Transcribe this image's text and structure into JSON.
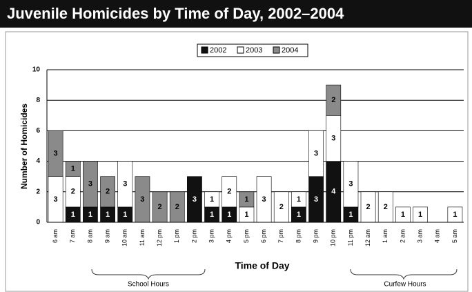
{
  "chart_data": {
    "type": "stacked_bar",
    "title": "Juvenile Homicides by Time of Day, 2002–2004",
    "x_label": "Time of Day",
    "y_label": "Number of Homicides",
    "annotations": [
      "School Hours",
      "Curfew Hours"
    ],
    "categories": [
      "6 am",
      "7 am",
      "8 am",
      "9 am",
      "10 am",
      "11 am",
      "12 pm",
      "1 pm",
      "2 pm",
      "3 pm",
      "4 pm",
      "5 pm",
      "6 pm",
      "7 pm",
      "8 pm",
      "9 pm",
      "10 pm",
      "11 pm",
      "12 am",
      "1 am",
      "2 am",
      "3 am",
      "4 am",
      "5 am"
    ],
    "series": [
      {
        "name": "2002",
        "color": "#111111",
        "values": [
          0,
          1,
          1,
          1,
          1,
          0,
          0,
          0,
          3,
          1,
          1,
          0,
          0,
          0,
          1,
          3,
          4,
          1,
          0,
          0,
          0,
          0,
          0,
          0
        ]
      },
      {
        "name": "2003",
        "color": "#ffffff",
        "values": [
          3,
          2,
          0,
          0,
          3,
          0,
          0,
          0,
          0,
          1,
          2,
          1,
          3,
          2,
          1,
          3,
          3,
          3,
          2,
          2,
          1,
          1,
          0,
          1
        ]
      },
      {
        "name": "2004",
        "color": "#8a8a8a",
        "values": [
          3,
          1,
          3,
          2,
          0,
          3,
          2,
          2,
          0,
          0,
          0,
          1,
          0,
          0,
          0,
          0,
          2,
          0,
          0,
          0,
          0,
          0,
          0,
          0
        ]
      }
    ],
    "ylim": [
      0,
      10
    ],
    "yticks": [
      0,
      2,
      4,
      6,
      8,
      10
    ],
    "grid": true,
    "legend": "top"
  }
}
